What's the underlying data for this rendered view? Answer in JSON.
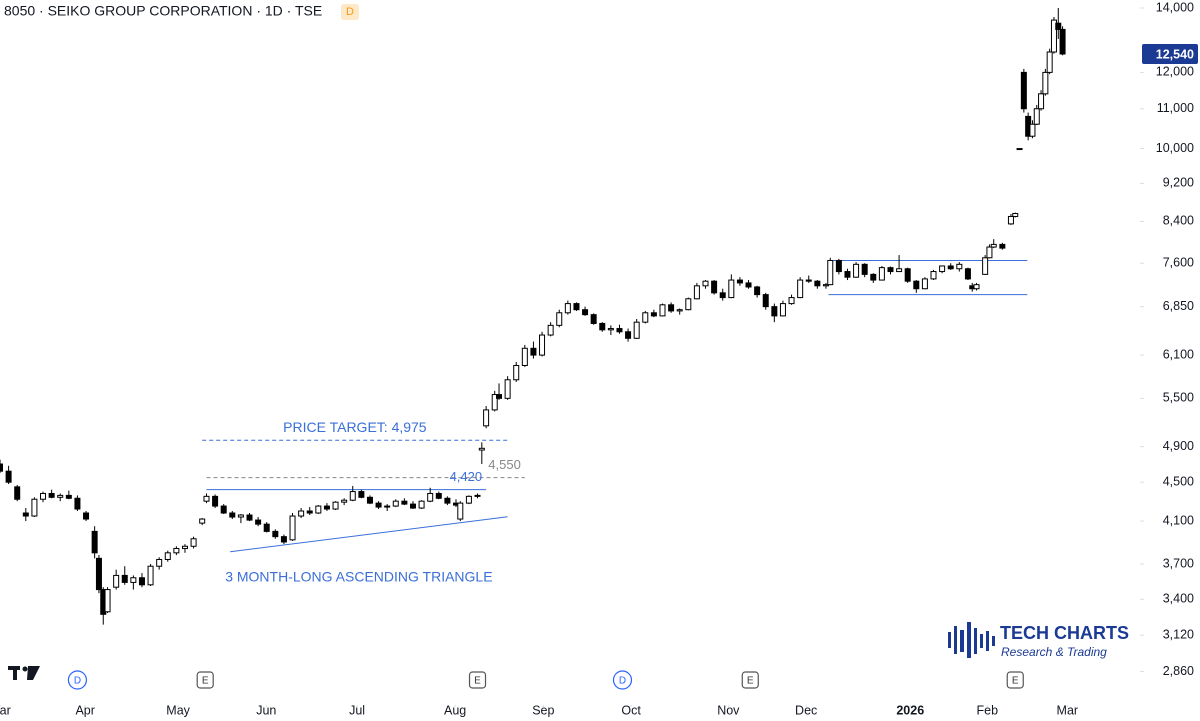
{
  "chart_data": {
    "type": "candlestick",
    "title": "8050 · SEIKO GROUP CORPORATION · 1D · TSE",
    "title_badge": "D",
    "log_scale": true,
    "up_color": "#ffffff",
    "down_color": "#000000",
    "ylim": [
      2640,
      14270
    ],
    "yticks": [
      {
        "value": 2860,
        "label": "2,860"
      },
      {
        "value": 3120,
        "label": "3,120"
      },
      {
        "value": 3400,
        "label": "3,400"
      },
      {
        "value": 3700,
        "label": "3,700"
      },
      {
        "value": 4100,
        "label": "4,100"
      },
      {
        "value": 4500,
        "label": "4,500"
      },
      {
        "value": 4900,
        "label": "4,900"
      },
      {
        "value": 5500,
        "label": "5,500"
      },
      {
        "value": 6100,
        "label": "6,100"
      },
      {
        "value": 6850,
        "label": "6,850"
      },
      {
        "value": 7600,
        "label": "7,600"
      },
      {
        "value": 8400,
        "label": "8,400"
      },
      {
        "value": 9200,
        "label": "9,200"
      },
      {
        "value": 10000,
        "label": "10,000"
      },
      {
        "value": 11000,
        "label": "11,000"
      },
      {
        "value": 12000,
        "label": "12,000"
      },
      {
        "value": 14000,
        "label": "14,000"
      }
    ],
    "xlim": [
      0,
      265
    ],
    "xticks": [
      {
        "value": 0,
        "label": "Mar"
      },
      {
        "value": 19.8,
        "label": "Apr"
      },
      {
        "value": 41.4,
        "label": "May"
      },
      {
        "value": 61.9,
        "label": "Jun"
      },
      {
        "value": 83,
        "label": "Jul"
      },
      {
        "value": 105.8,
        "label": "Aug"
      },
      {
        "value": 126.3,
        "label": "Sep"
      },
      {
        "value": 146.7,
        "label": "Oct"
      },
      {
        "value": 169.3,
        "label": "Nov"
      },
      {
        "value": 187.4,
        "label": "Dec"
      },
      {
        "value": 211.6,
        "label": "2026"
      },
      {
        "value": 229.5,
        "label": "Feb"
      },
      {
        "value": 248.1,
        "label": "Mar"
      }
    ],
    "candles": [
      [
        0,
        4700,
        4750,
        4600,
        4620
      ],
      [
        2,
        4620,
        4680,
        4480,
        4500
      ],
      [
        4,
        4450,
        4470,
        4300,
        4320
      ],
      [
        6,
        4180,
        4230,
        4100,
        4150
      ],
      [
        8,
        4150,
        4340,
        4140,
        4320
      ],
      [
        10,
        4320,
        4400,
        4290,
        4380
      ],
      [
        12,
        4380,
        4420,
        4330,
        4340
      ],
      [
        14,
        4340,
        4380,
        4300,
        4360
      ],
      [
        16,
        4360,
        4410,
        4320,
        4330
      ],
      [
        18,
        4330,
        4360,
        4200,
        4220
      ],
      [
        20,
        4180,
        4200,
        4100,
        4120
      ],
      [
        22,
        4000,
        4050,
        3750,
        3800
      ],
      [
        23,
        3750,
        3780,
        3450,
        3480
      ],
      [
        24,
        3480,
        3500,
        3200,
        3280
      ],
      [
        25,
        3300,
        3500,
        3290,
        3480
      ],
      [
        27,
        3500,
        3650,
        3480,
        3600
      ],
      [
        29,
        3600,
        3680,
        3520,
        3540
      ],
      [
        31,
        3540,
        3600,
        3480,
        3580
      ],
      [
        33,
        3580,
        3620,
        3500,
        3520
      ],
      [
        35,
        3520,
        3700,
        3510,
        3680
      ],
      [
        37,
        3680,
        3760,
        3650,
        3740
      ],
      [
        39,
        3740,
        3820,
        3720,
        3800
      ],
      [
        41,
        3800,
        3860,
        3780,
        3840
      ],
      [
        43,
        3840,
        3880,
        3800,
        3860
      ],
      [
        45,
        3860,
        3950,
        3840,
        3930
      ],
      [
        47,
        4080,
        4130,
        4060,
        4120
      ],
      [
        48,
        4300,
        4380,
        4280,
        4350
      ],
      [
        50,
        4350,
        4370,
        4230,
        4250
      ],
      [
        52,
        4250,
        4270,
        4170,
        4180
      ],
      [
        54,
        4180,
        4200,
        4120,
        4140
      ],
      [
        56,
        4140,
        4170,
        4080,
        4160
      ],
      [
        58,
        4160,
        4180,
        4100,
        4110
      ],
      [
        60,
        4110,
        4140,
        4050,
        4070
      ],
      [
        62,
        4070,
        4090,
        3990,
        4000
      ],
      [
        64,
        4000,
        4020,
        3930,
        3950
      ],
      [
        66,
        3950,
        3970,
        3880,
        3900
      ],
      [
        68,
        3920,
        4180,
        3910,
        4150
      ],
      [
        70,
        4150,
        4230,
        4130,
        4200
      ],
      [
        72,
        4200,
        4240,
        4160,
        4180
      ],
      [
        74,
        4180,
        4260,
        4170,
        4250
      ],
      [
        76,
        4250,
        4280,
        4200,
        4220
      ],
      [
        78,
        4220,
        4300,
        4210,
        4290
      ],
      [
        80,
        4290,
        4330,
        4260,
        4310
      ],
      [
        82,
        4310,
        4460,
        4300,
        4400
      ],
      [
        84,
        4400,
        4420,
        4330,
        4340
      ],
      [
        86,
        4340,
        4360,
        4270,
        4280
      ],
      [
        88,
        4280,
        4300,
        4220,
        4240
      ],
      [
        90,
        4240,
        4270,
        4200,
        4250
      ],
      [
        92,
        4250,
        4320,
        4240,
        4300
      ],
      [
        94,
        4300,
        4330,
        4260,
        4270
      ],
      [
        96,
        4270,
        4300,
        4220,
        4230
      ],
      [
        98,
        4230,
        4310,
        4220,
        4300
      ],
      [
        100,
        4300,
        4440,
        4290,
        4380
      ],
      [
        102,
        4380,
        4400,
        4320,
        4330
      ],
      [
        104,
        4330,
        4350,
        4260,
        4280
      ],
      [
        106,
        4280,
        4320,
        4240,
        4260
      ],
      [
        107,
        4120,
        4300,
        4100,
        4280
      ],
      [
        109,
        4280,
        4360,
        4270,
        4350
      ],
      [
        111,
        4350,
        4380,
        4330,
        4360
      ],
      [
        112,
        4860,
        4950,
        4700,
        4880
      ],
      [
        113,
        5150,
        5400,
        5120,
        5350
      ],
      [
        115,
        5350,
        5600,
        5330,
        5550
      ],
      [
        116,
        5550,
        5700,
        5480,
        5500
      ],
      [
        118,
        5500,
        5800,
        5480,
        5750
      ],
      [
        120,
        5750,
        6000,
        5720,
        5950
      ],
      [
        122,
        5950,
        6250,
        5930,
        6200
      ],
      [
        124,
        6200,
        6300,
        6050,
        6100
      ],
      [
        126,
        6100,
        6450,
        6080,
        6400
      ],
      [
        128,
        6400,
        6600,
        6380,
        6550
      ],
      [
        130,
        6550,
        6800,
        6520,
        6750
      ],
      [
        132,
        6750,
        6950,
        6720,
        6900
      ],
      [
        134,
        6900,
        6920,
        6780,
        6800
      ],
      [
        136,
        6800,
        6850,
        6700,
        6720
      ],
      [
        138,
        6720,
        6740,
        6560,
        6580
      ],
      [
        140,
        6580,
        6600,
        6450,
        6480
      ],
      [
        142,
        6480,
        6550,
        6400,
        6500
      ],
      [
        144,
        6500,
        6560,
        6420,
        6450
      ],
      [
        146,
        6450,
        6500,
        6300,
        6350
      ],
      [
        148,
        6350,
        6650,
        6340,
        6600
      ],
      [
        150,
        6600,
        6780,
        6580,
        6750
      ],
      [
        152,
        6750,
        6800,
        6680,
        6700
      ],
      [
        154,
        6700,
        6900,
        6690,
        6880
      ],
      [
        156,
        6880,
        6920,
        6750,
        6780
      ],
      [
        158,
        6780,
        6820,
        6720,
        6800
      ],
      [
        160,
        6800,
        7000,
        6790,
        6980
      ],
      [
        162,
        6980,
        7250,
        6970,
        7200
      ],
      [
        164,
        7200,
        7300,
        7150,
        7280
      ],
      [
        166,
        7280,
        7300,
        7050,
        7080
      ],
      [
        168,
        7080,
        7150,
        6950,
        7000
      ],
      [
        170,
        7000,
        7400,
        6990,
        7300
      ],
      [
        172,
        7300,
        7350,
        7200,
        7250
      ],
      [
        174,
        7250,
        7300,
        7150,
        7180
      ],
      [
        176,
        7180,
        7200,
        7000,
        7050
      ],
      [
        178,
        7050,
        7080,
        6800,
        6850
      ],
      [
        180,
        6850,
        6900,
        6600,
        6700
      ],
      [
        182,
        6700,
        6950,
        6690,
        6900
      ],
      [
        184,
        6900,
        7050,
        6880,
        7000
      ],
      [
        186,
        7000,
        7350,
        6990,
        7300
      ],
      [
        188,
        7300,
        7380,
        7250,
        7280
      ],
      [
        190,
        7280,
        7300,
        7150,
        7200
      ],
      [
        192,
        7200,
        7250,
        7150,
        7220
      ],
      [
        193,
        7220,
        7700,
        7210,
        7650
      ],
      [
        195,
        7650,
        7680,
        7400,
        7450
      ],
      [
        197,
        7450,
        7500,
        7300,
        7350
      ],
      [
        199,
        7350,
        7620,
        7340,
        7580
      ],
      [
        201,
        7580,
        7600,
        7350,
        7400
      ],
      [
        203,
        7400,
        7420,
        7250,
        7300
      ],
      [
        205,
        7300,
        7550,
        7290,
        7520
      ],
      [
        207,
        7520,
        7540,
        7400,
        7450
      ],
      [
        209,
        7450,
        7750,
        7440,
        7500
      ],
      [
        211,
        7500,
        7520,
        7250,
        7280
      ],
      [
        213,
        7280,
        7300,
        7080,
        7150
      ],
      [
        215,
        7150,
        7350,
        7140,
        7320
      ],
      [
        217,
        7320,
        7480,
        7300,
        7450
      ],
      [
        219,
        7450,
        7560,
        7420,
        7550
      ],
      [
        221,
        7550,
        7600,
        7480,
        7500
      ],
      [
        223,
        7500,
        7620,
        7450,
        7580
      ],
      [
        225,
        7500,
        7520,
        7300,
        7320
      ],
      [
        226,
        7200,
        7250,
        7100,
        7150
      ],
      [
        227,
        7150,
        7250,
        7120,
        7220
      ],
      [
        229,
        7400,
        7750,
        7390,
        7700
      ],
      [
        230,
        7700,
        7950,
        7690,
        7900
      ],
      [
        231,
        7900,
        8050,
        7880,
        7950
      ],
      [
        233,
        7950,
        7980,
        7850,
        7880
      ],
      [
        235,
        8350,
        8550,
        8330,
        8500
      ],
      [
        236,
        8500,
        8580,
        8480,
        8560
      ],
      [
        237,
        10000,
        10000,
        10000,
        10000
      ],
      [
        238,
        12000,
        12100,
        10900,
        11000
      ],
      [
        239,
        10800,
        10900,
        10200,
        10300
      ],
      [
        240,
        10300,
        10700,
        10250,
        10600
      ],
      [
        241,
        10600,
        11100,
        10580,
        11000
      ],
      [
        242,
        11000,
        11500,
        10950,
        11400
      ],
      [
        243,
        11400,
        12100,
        11350,
        12000
      ],
      [
        244,
        12000,
        12700,
        11950,
        12600
      ],
      [
        245,
        12600,
        13700,
        12550,
        13600
      ],
      [
        246,
        13500,
        14000,
        13000,
        13300
      ],
      [
        247,
        13300,
        13400,
        12500,
        12540
      ]
    ],
    "last_price": {
      "value": 12540,
      "label": "12,540",
      "color": "#1b3a94"
    },
    "events": [
      {
        "x": 18,
        "label": "D"
      },
      {
        "x": 47.7,
        "label": "E"
      },
      {
        "x": 111,
        "label": "E"
      },
      {
        "x": 144.7,
        "label": "D"
      },
      {
        "x": 174.4,
        "label": "E"
      },
      {
        "x": 236,
        "label": "E"
      }
    ],
    "price_target": {
      "label": "PRICE TARGET: 4,975",
      "value": 4975,
      "x": [
        47,
        118
      ],
      "color": "#3a6fd8"
    },
    "levels": [
      {
        "value": 4550,
        "label": "4,550",
        "x": [
          48,
          122
        ],
        "color": "#888888",
        "dashed": true
      },
      {
        "value": 4420,
        "label": "4,420",
        "x": [
          48,
          113
        ],
        "color": "#3a6fd8",
        "dashed": false
      }
    ],
    "triangle_line": {
      "x": [
        53.5,
        118
      ],
      "y": [
        3810,
        4143
      ],
      "color": "#3a6fd8"
    },
    "triangle_label": "3 MONTH-LONG ASCENDING TRIANGLE",
    "range_lines": {
      "x": [
        192.6,
        238.8
      ],
      "values": [
        7650,
        7050
      ],
      "color": "#3a6fd8"
    },
    "logo": {
      "name": "TECH CHARTS",
      "tagline": "Research & Trading"
    }
  }
}
